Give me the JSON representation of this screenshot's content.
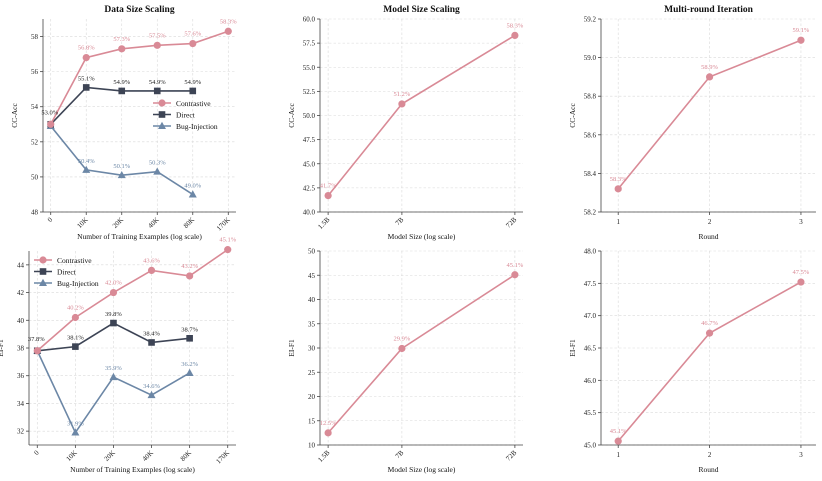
{
  "colors": {
    "contrastive": "#d98a96",
    "direct": "#3d4455",
    "bug_injection": "#6c87a6"
  },
  "chart_data": [
    {
      "id": "p1",
      "type": "line",
      "title": "Data Size Scaling",
      "xlabel": "Number of Training Examples (log scale)",
      "ylabel": "CC-Acc",
      "categories": [
        "0",
        "10K",
        "20K",
        "40K",
        "80K",
        "170K"
      ],
      "ylim": [
        48,
        59
      ],
      "yticks": [
        48,
        50,
        52,
        54,
        56,
        58
      ],
      "grid": true,
      "legend": "right",
      "series": [
        {
          "name": "Contrastive",
          "color": "#d98a96",
          "marker": "circle",
          "values": [
            53.0,
            56.8,
            57.3,
            57.5,
            57.6,
            58.3
          ],
          "labels": [
            "",
            "56.8%",
            "57.3%",
            "57.5%",
            "57.6%",
            "58.3%"
          ]
        },
        {
          "name": "Direct",
          "color": "#3d4455",
          "marker": "square",
          "values": [
            53.0,
            55.1,
            54.9,
            54.9,
            54.9,
            null
          ],
          "labels": [
            "53.0%",
            "55.1%",
            "54.9%",
            "54.9%",
            "54.9%",
            ""
          ]
        },
        {
          "name": "Bug-Injection",
          "color": "#6c87a6",
          "marker": "triangle",
          "values": [
            52.9,
            50.4,
            50.1,
            50.3,
            49.0,
            null
          ],
          "labels": [
            "",
            "50.4%",
            "50.1%",
            "50.3%",
            "49.0%",
            ""
          ]
        }
      ]
    },
    {
      "id": "p2",
      "type": "line",
      "title": "Model Size Scaling",
      "xlabel": "Model Size (log scale)",
      "ylabel": "CC-Acc",
      "categories": [
        "1.5B",
        "7B",
        "72B"
      ],
      "xpos": [
        0,
        0.395,
        1
      ],
      "ylim": [
        40,
        60
      ],
      "yticks": [
        40.0,
        42.5,
        45.0,
        47.5,
        50.0,
        52.5,
        55.0,
        57.5,
        60.0
      ],
      "ydecimals": 1,
      "grid": true,
      "series": [
        {
          "name": "Contrastive",
          "color": "#d98a96",
          "marker": "circle",
          "values": [
            41.7,
            51.2,
            58.3
          ],
          "labels": [
            "41.7%",
            "51.2%",
            "58.3%"
          ]
        }
      ]
    },
    {
      "id": "p3",
      "type": "line",
      "title": "Multi-round Iteration",
      "xlabel": "Round",
      "ylabel": "CC-Acc",
      "categories": [
        "1",
        "2",
        "3"
      ],
      "ylim": [
        58.2,
        59.2
      ],
      "yticks": [
        58.2,
        58.4,
        58.6,
        58.8,
        59.0,
        59.2
      ],
      "ydecimals": 1,
      "grid": true,
      "series": [
        {
          "name": "Contrastive",
          "color": "#d98a96",
          "marker": "circle",
          "values": [
            58.32,
            58.9,
            59.09
          ],
          "labels": [
            "58.3%",
            "58.9%",
            "59.1%"
          ]
        }
      ]
    },
    {
      "id": "p4",
      "type": "line",
      "title": "",
      "xlabel": "Number of Training Examples (log scale)",
      "ylabel": "EI-F1",
      "categories": [
        "0",
        "10K",
        "20K",
        "40K",
        "80K",
        "170K"
      ],
      "ylim": [
        31,
        45
      ],
      "yticks": [
        32,
        34,
        36,
        38,
        40,
        42,
        44
      ],
      "grid": true,
      "legend": "upper-left",
      "series": [
        {
          "name": "Contrastive",
          "color": "#d98a96",
          "marker": "circle",
          "values": [
            37.8,
            40.2,
            42.0,
            43.6,
            43.2,
            45.1
          ],
          "labels": [
            "",
            "40.2%",
            "42.0%",
            "43.6%",
            "43.2%",
            "45.1%"
          ]
        },
        {
          "name": "Direct",
          "color": "#3d4455",
          "marker": "square",
          "values": [
            37.8,
            38.1,
            39.8,
            38.4,
            38.7,
            null
          ],
          "labels": [
            "37.8%",
            "38.1%",
            "39.8%",
            "38.4%",
            "38.7%",
            ""
          ]
        },
        {
          "name": "Bug-Injection",
          "color": "#6c87a6",
          "marker": "triangle",
          "values": [
            37.8,
            31.9,
            35.9,
            34.6,
            36.2,
            null
          ],
          "labels": [
            "",
            "31.9%",
            "35.9%",
            "34.6%",
            "36.2%",
            ""
          ]
        }
      ]
    },
    {
      "id": "p5",
      "type": "line",
      "title": "",
      "xlabel": "Model Size (log scale)",
      "ylabel": "EI-F1",
      "categories": [
        "1.5B",
        "7B",
        "72B"
      ],
      "xpos": [
        0,
        0.395,
        1
      ],
      "ylim": [
        10,
        50
      ],
      "yticks": [
        10,
        15,
        20,
        25,
        30,
        35,
        40,
        45,
        50
      ],
      "grid": true,
      "series": [
        {
          "name": "Contrastive",
          "color": "#d98a96",
          "marker": "circle",
          "values": [
            12.5,
            29.9,
            45.1
          ],
          "labels": [
            "12.5%",
            "29.9%",
            "45.1%"
          ]
        }
      ]
    },
    {
      "id": "p6",
      "type": "line",
      "title": "",
      "xlabel": "Round",
      "ylabel": "EI-F1",
      "categories": [
        "1",
        "2",
        "3"
      ],
      "ylim": [
        45,
        48
      ],
      "yticks": [
        45.0,
        45.5,
        46.0,
        46.5,
        47.0,
        47.5,
        48.0
      ],
      "ydecimals": 1,
      "grid": true,
      "series": [
        {
          "name": "Contrastive",
          "color": "#d98a96",
          "marker": "circle",
          "values": [
            45.06,
            46.73,
            47.52
          ],
          "labels": [
            "45.1%",
            "46.7%",
            "47.5%"
          ]
        }
      ]
    }
  ]
}
